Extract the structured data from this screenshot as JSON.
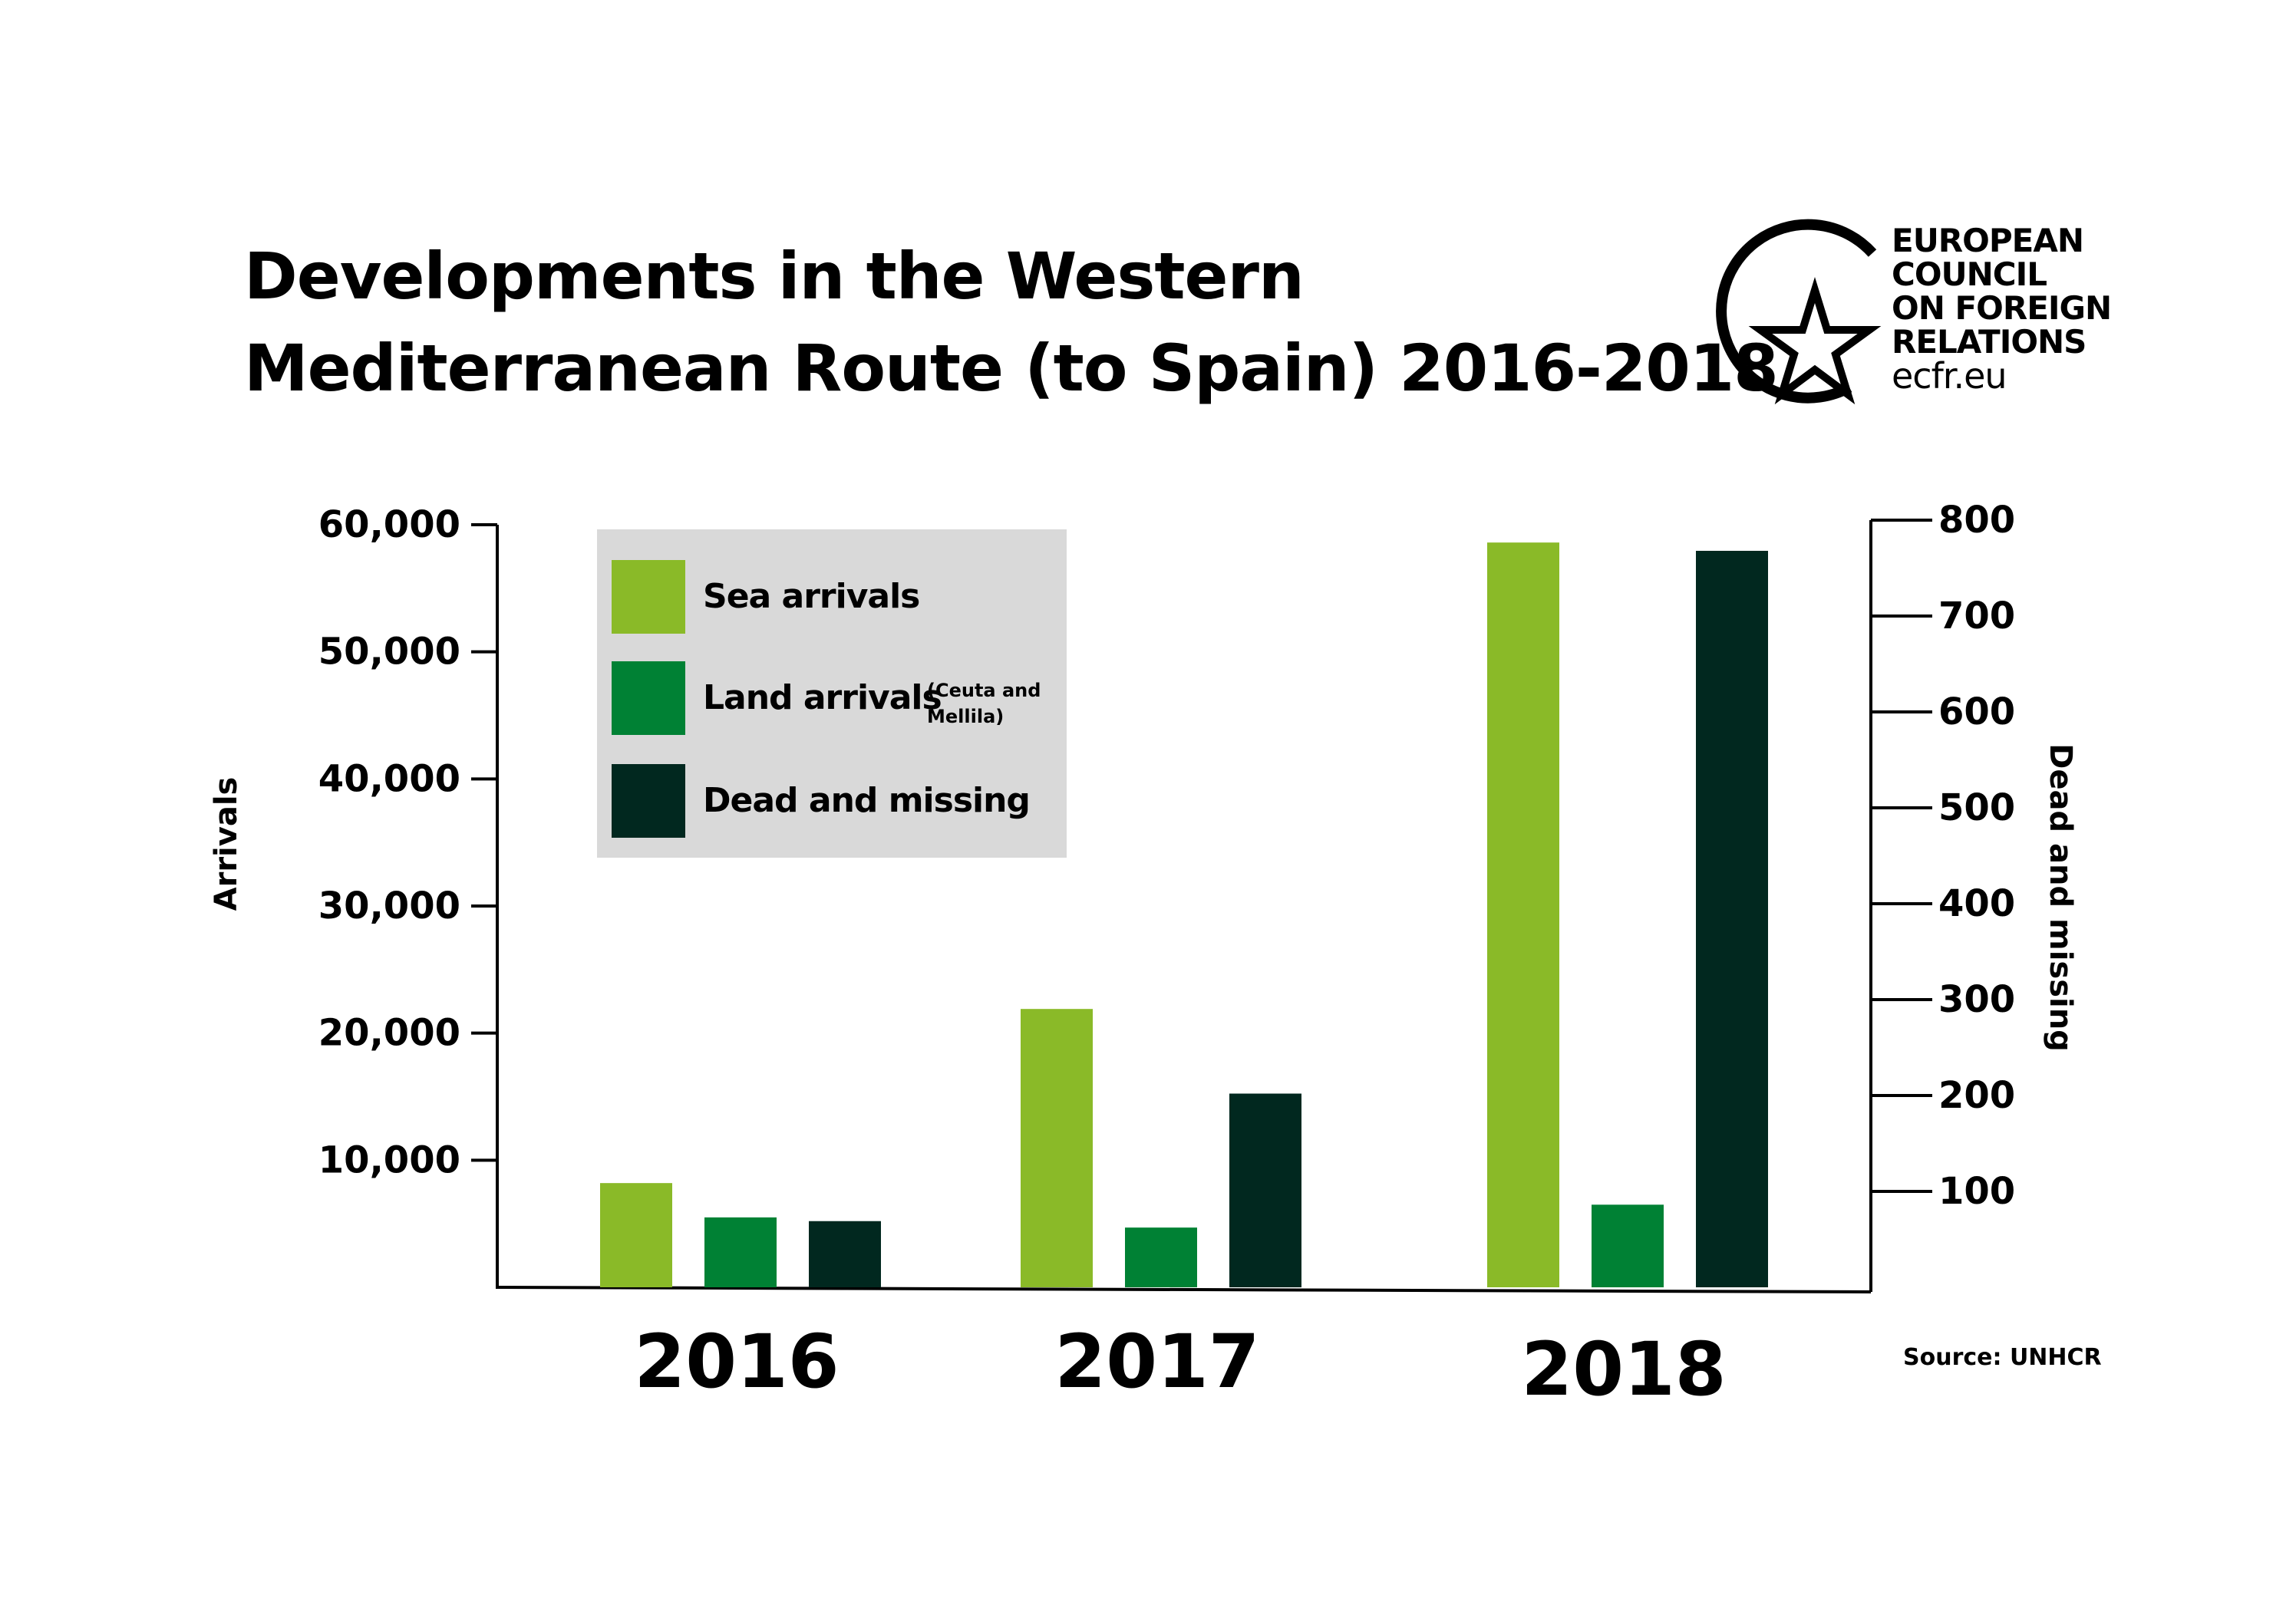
{
  "header": {
    "title_line1": "Developments in the Western",
    "title_line2": "Mediterranean Route (to Spain) 2016-2018"
  },
  "logo": {
    "line1": "EUROPEAN",
    "line2": "COUNCIL",
    "line3": "ON FOREIGN",
    "line4": "RELATIONS",
    "url": "ecfr.eu"
  },
  "source": "Source: UNHCR",
  "colors": {
    "sea": "#8aba28",
    "land": "#008134",
    "dead": "#01281f",
    "legend_bg": "#d9d9d9",
    "axis": "#000000"
  },
  "chart_data": {
    "type": "bar",
    "title": "Developments in the Western Mediterranean Route (to Spain) 2016-2018",
    "categories": [
      "2016",
      "2017",
      "2018"
    ],
    "y_left": {
      "label": "Arrivals",
      "ylim": [
        0,
        60000
      ],
      "ticks": [
        10000,
        20000,
        30000,
        40000,
        50000,
        60000
      ],
      "tick_labels": [
        "10,000",
        "20,000",
        "30,000",
        "40,000",
        "50,000",
        "60,000"
      ]
    },
    "y_right": {
      "label": "Dead and missing",
      "ylim": [
        0,
        800
      ],
      "ticks": [
        100,
        200,
        300,
        400,
        500,
        600,
        700,
        800
      ],
      "tick_labels": [
        "100",
        "200",
        "300",
        "400",
        "500",
        "600",
        "700",
        "800"
      ]
    },
    "series": [
      {
        "name": "Sea arrivals",
        "axis": "left",
        "color": "#8aba28",
        "values": [
          8200,
          21900,
          58600
        ]
      },
      {
        "name": "Land arrivals",
        "name_note": "(Ceuta and Mellila)",
        "axis": "left",
        "color": "#008134",
        "values": [
          5500,
          4700,
          6500
        ]
      },
      {
        "name": "Dead and missing",
        "axis": "right",
        "color": "#01281f",
        "values": [
          69,
          202,
          768
        ]
      }
    ],
    "legend": "top-left",
    "grid": false
  }
}
